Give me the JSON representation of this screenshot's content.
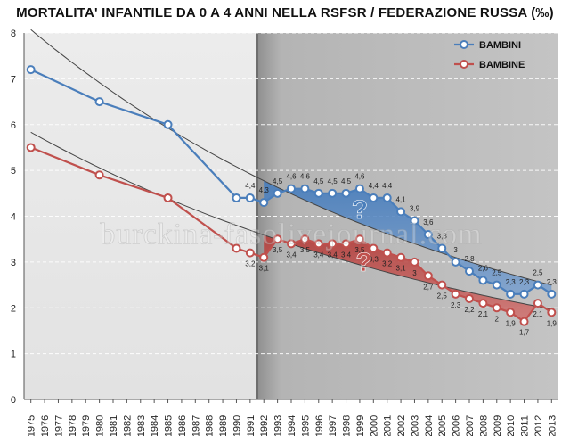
{
  "chart_data": {
    "type": "line",
    "title": "MORTALITA' INFANTILE DA 0 A 4 ANNI NELLA RSFSR / FEDERAZIONE RUSSA (‰)",
    "xlabel": "",
    "ylabel": "",
    "ylim": [
      0,
      8
    ],
    "yticks": [
      "0",
      "1",
      "2",
      "3",
      "4",
      "5",
      "6",
      "7",
      "8"
    ],
    "xlim": [
      1975,
      2013
    ],
    "xticks": [
      "1975",
      "1976",
      "1977",
      "1978",
      "1979",
      "1980",
      "1981",
      "1982",
      "1983",
      "1984",
      "1985",
      "1986",
      "1987",
      "1988",
      "1989",
      "1990",
      "1991",
      "1992",
      "1993",
      "1994",
      "1995",
      "1996",
      "1997",
      "1998",
      "1999",
      "2000",
      "2001",
      "2002",
      "2003",
      "2004",
      "2005",
      "2006",
      "2007",
      "2008",
      "2009",
      "2010",
      "2011",
      "2012",
      "2013"
    ],
    "grid": "horizontal dashed",
    "legend_position": "top-right",
    "shaded_from": 1991.5,
    "series": [
      {
        "name": "BAMBINI",
        "color": "#4a7ebb",
        "x": [
          1975,
          1980,
          1985,
          1990,
          1991,
          1992,
          1993,
          1994,
          1995,
          1996,
          1997,
          1998,
          1999,
          2000,
          2001,
          2002,
          2003,
          2004,
          2005,
          2006,
          2007,
          2008,
          2009,
          2010,
          2011,
          2012,
          2013
        ],
        "values": [
          7.2,
          6.5,
          6.0,
          4.4,
          4.4,
          4.3,
          4.5,
          4.6,
          4.6,
          4.5,
          4.5,
          4.5,
          4.6,
          4.4,
          4.4,
          4.1,
          3.9,
          3.6,
          3.3,
          3.0,
          2.8,
          2.6,
          2.5,
          2.3,
          2.3,
          2.5,
          2.3
        ],
        "labels": [
          "",
          "",
          "",
          "",
          "4,4",
          "4,3",
          "4,5",
          "4,6",
          "4,6",
          "4,5",
          "4,5",
          "4,5",
          "4,6",
          "4,4",
          "4,4",
          "4,1",
          "3,9",
          "3,6",
          "3,3",
          "3",
          "2,8",
          "2,6",
          "2,5",
          "2,3",
          "2,3",
          "2,5",
          "2,3"
        ]
      },
      {
        "name": "BAMBINE",
        "color": "#c0504d",
        "x": [
          1975,
          1980,
          1985,
          1990,
          1991,
          1992,
          1993,
          1994,
          1995,
          1996,
          1997,
          1998,
          1999,
          2000,
          2001,
          2002,
          2003,
          2004,
          2005,
          2006,
          2007,
          2008,
          2009,
          2010,
          2011,
          2012,
          2013
        ],
        "values": [
          5.5,
          4.9,
          4.4,
          3.3,
          3.2,
          3.1,
          3.5,
          3.4,
          3.5,
          3.4,
          3.4,
          3.4,
          3.5,
          3.3,
          3.2,
          3.1,
          3.0,
          2.7,
          2.5,
          2.3,
          2.2,
          2.1,
          2.0,
          1.9,
          1.7,
          2.1,
          1.9
        ],
        "labels": [
          "",
          "",
          "",
          "",
          "3,2",
          "3,1",
          "3,5",
          "3,4",
          "3,5",
          "3,4",
          "3,4",
          "3,4",
          "3,5",
          "3,3",
          "3,2",
          "3,1",
          "3",
          "2,7",
          "2,5",
          "2,3",
          "2,2",
          "2,1",
          "2",
          "1,9",
          "1,7",
          "2,1",
          "1,9"
        ]
      }
    ],
    "trend_color": "#444444",
    "fill_colors": [
      "#4a7ebb",
      "#c0504d"
    ],
    "annotations": [
      "?",
      "?"
    ],
    "watermark": "burckina-fasolivejournal.com"
  }
}
